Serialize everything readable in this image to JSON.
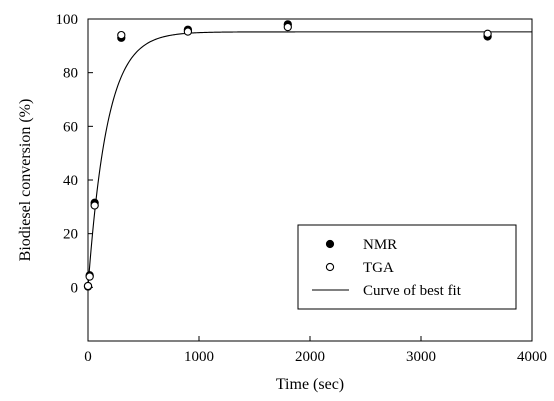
{
  "chart_data": {
    "type": "scatter",
    "xlabel": "Time (sec)",
    "ylabel": "Biodiesel conversion (%)",
    "xlim": [
      0,
      4000
    ],
    "ylim": [
      -20,
      100
    ],
    "x_ticks": [
      "0",
      "1000",
      "2000",
      "3000",
      "4000"
    ],
    "y_ticks": [
      "0",
      "20",
      "40",
      "60",
      "80",
      "100"
    ],
    "grid": false,
    "legend_position": "bottom-right",
    "series": [
      {
        "name": "NMR",
        "marker": "filled-circle",
        "points": [
          {
            "x": 0,
            "y": 0.3
          },
          {
            "x": 15,
            "y": 4.5
          },
          {
            "x": 60,
            "y": 31.5
          },
          {
            "x": 300,
            "y": 93.0
          },
          {
            "x": 900,
            "y": 96.0
          },
          {
            "x": 1800,
            "y": 98.0
          },
          {
            "x": 3600,
            "y": 93.5
          }
        ]
      },
      {
        "name": "TGA",
        "marker": "open-circle",
        "points": [
          {
            "x": 0,
            "y": 0.5
          },
          {
            "x": 15,
            "y": 4.0
          },
          {
            "x": 60,
            "y": 30.5
          },
          {
            "x": 300,
            "y": 94.0
          },
          {
            "x": 900,
            "y": 95.3
          },
          {
            "x": 1800,
            "y": 97.0
          },
          {
            "x": 3600,
            "y": 94.5
          }
        ]
      },
      {
        "name": "Curve of best fit",
        "marker": "line",
        "fit": {
          "model": "exponential-rise",
          "plateau": 95.2,
          "rate": 0.0058
        }
      }
    ]
  }
}
